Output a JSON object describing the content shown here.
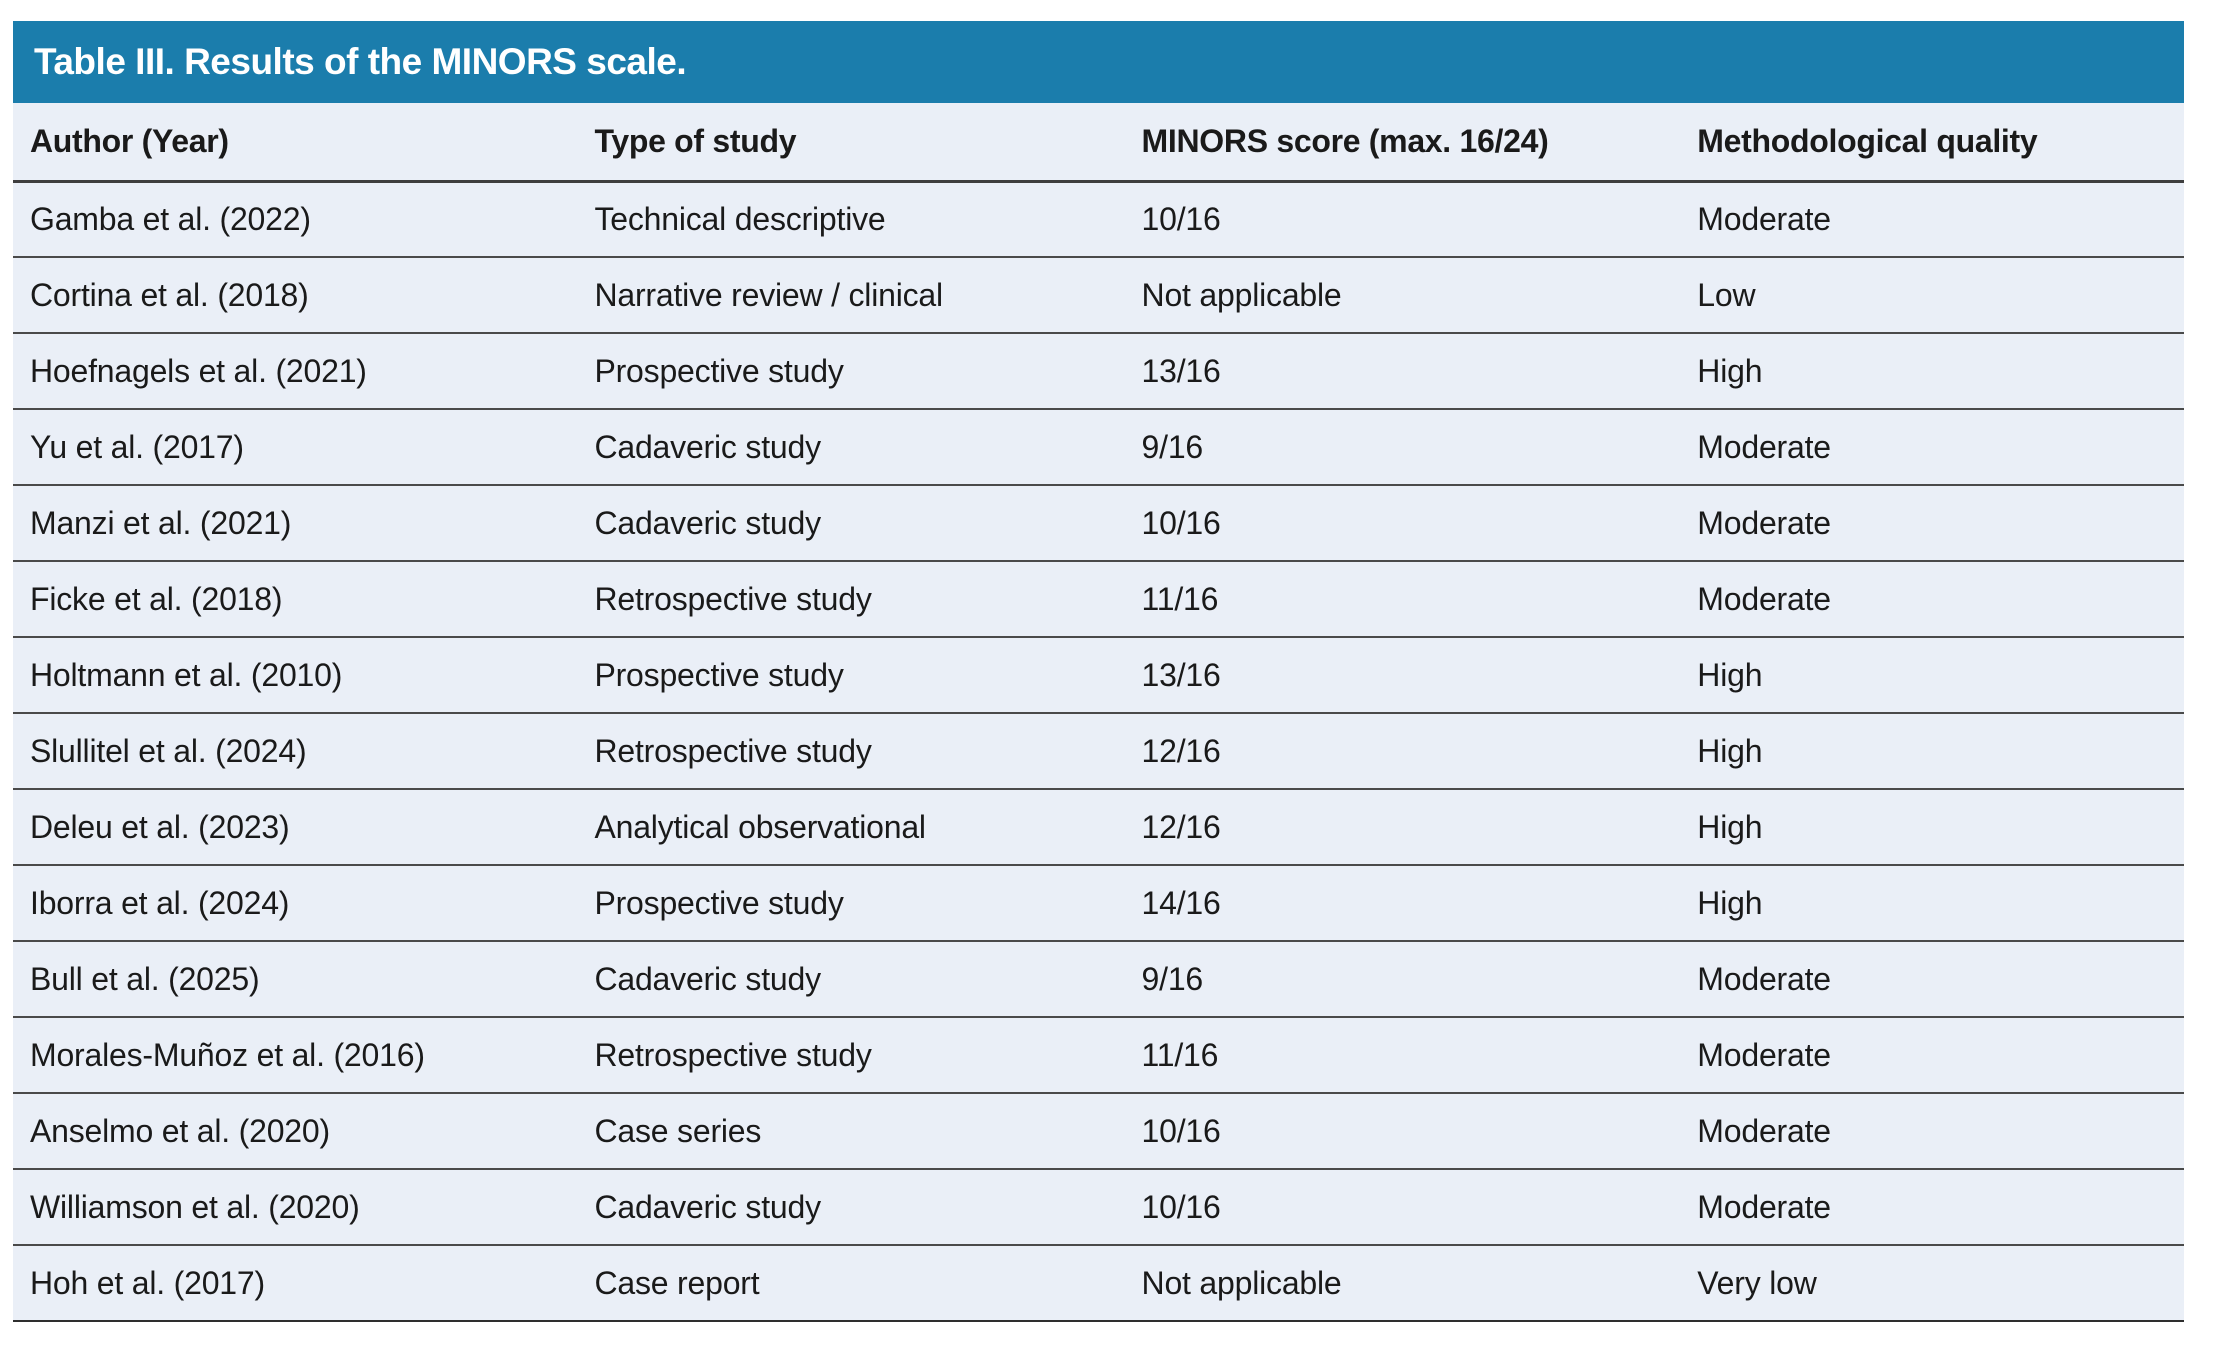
{
  "table": {
    "title": "Table III. Results of the MINORS scale.",
    "columns": [
      "Author (Year)",
      "Type of study",
      "MINORS score (max. 16/24)",
      "Methodological quality"
    ],
    "rows": [
      [
        "Gamba et al. (2022)",
        "Technical descriptive",
        "10/16",
        "Moderate"
      ],
      [
        "Cortina et al. (2018)",
        "Narrative review / clinical",
        "Not applicable",
        "Low"
      ],
      [
        "Hoefnagels et al. (2021)",
        "Prospective study",
        "13/16",
        "High"
      ],
      [
        "Yu et al. (2017)",
        "Cadaveric study",
        "9/16",
        "Moderate"
      ],
      [
        "Manzi et al. (2021)",
        "Cadaveric study",
        "10/16",
        "Moderate"
      ],
      [
        "Ficke et al. (2018)",
        "Retrospective study",
        "11/16",
        "Moderate"
      ],
      [
        "Holtmann et al. (2010)",
        "Prospective study",
        "13/16",
        "High"
      ],
      [
        "Slullitel et al. (2024)",
        "Retrospective study",
        "12/16",
        "High"
      ],
      [
        "Deleu et al. (2023)",
        "Analytical observational",
        "12/16",
        "High"
      ],
      [
        "Iborra et al. (2024)",
        "Prospective study",
        "14/16",
        "High"
      ],
      [
        "Bull et al. (2025)",
        "Cadaveric study",
        "9/16",
        "Moderate"
      ],
      [
        "Morales-Muñoz et al. (2016)",
        "Retrospective study",
        "11/16",
        "Moderate"
      ],
      [
        "Anselmo et al. (2020)",
        "Case series",
        "10/16",
        "Moderate"
      ],
      [
        "Williamson et al. (2020)",
        "Cadaveric study",
        "10/16",
        "Moderate"
      ],
      [
        "Hoh et al. (2017)",
        "Case report",
        "Not applicable",
        "Very low"
      ]
    ],
    "colors": {
      "title_bg": "#1B7DAC",
      "title_text": "#FFFFFF",
      "row_bg": "#EAEFF7",
      "separator_line": "#4A4A4A",
      "text": "#1A1A1A"
    }
  }
}
